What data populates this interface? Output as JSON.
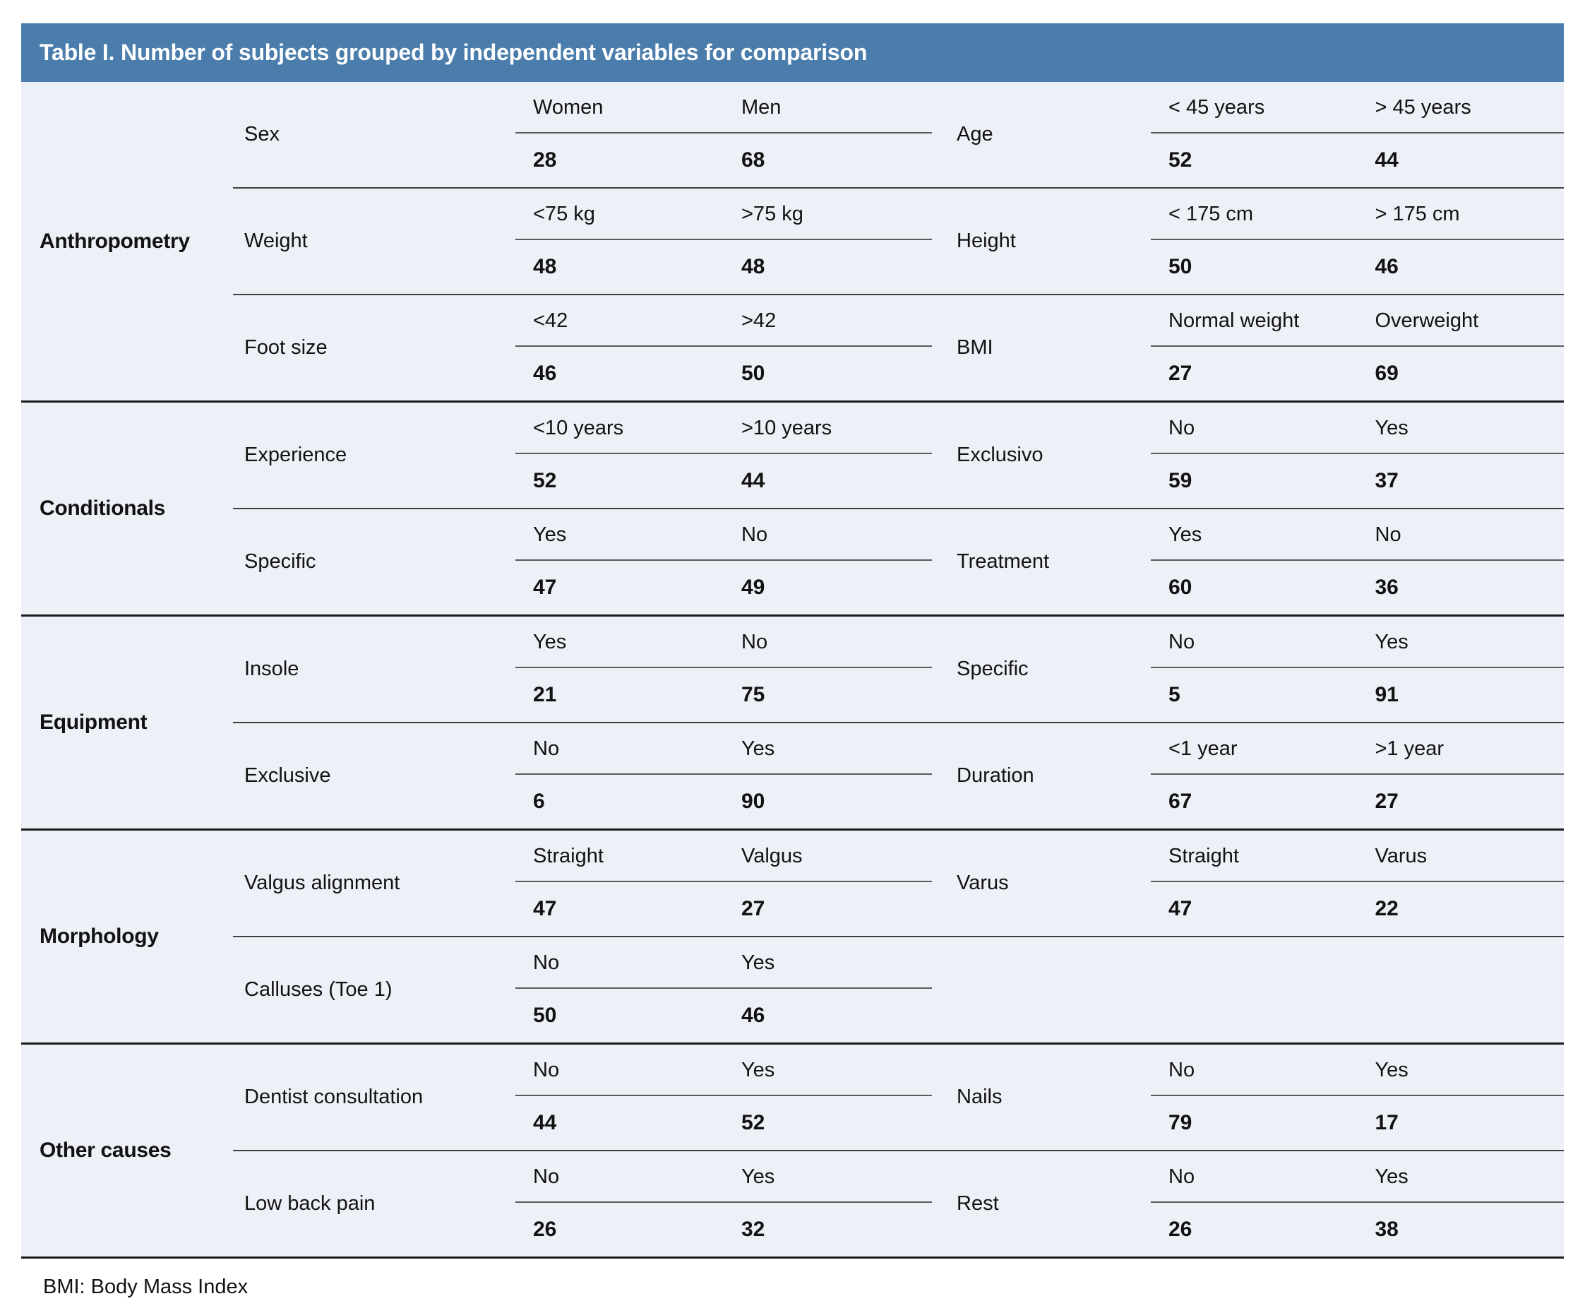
{
  "title": "Table I. Number of subjects grouped by independent variables for comparison",
  "footnote": "BMI: Body Mass Index",
  "colors": {
    "header_bg": "#4a7dab",
    "body_bg": "#edf0f7",
    "group_divider": "#1a1a1a",
    "row_divider": "#3e3e3e",
    "cell_divider": "#5a5a5a"
  },
  "groups": [
    {
      "category": "Anthropometry",
      "rows": [
        {
          "left": {
            "var": "Sex",
            "v1": {
              "label": "Women",
              "count": "28"
            },
            "v2": {
              "label": "Men",
              "count": "68"
            }
          },
          "right": {
            "var": "Age",
            "v1": {
              "label": "< 45 years",
              "count": "52"
            },
            "v2": {
              "label": "> 45 years",
              "count": "44"
            }
          }
        },
        {
          "left": {
            "var": "Weight",
            "v1": {
              "label": "<75 kg",
              "count": "48"
            },
            "v2": {
              "label": ">75 kg",
              "count": "48"
            }
          },
          "right": {
            "var": "Height",
            "v1": {
              "label": "< 175 cm",
              "count": "50"
            },
            "v2": {
              "label": "> 175 cm",
              "count": "46"
            }
          }
        },
        {
          "left": {
            "var": "Foot size",
            "v1": {
              "label": "<42",
              "count": "46"
            },
            "v2": {
              "label": ">42",
              "count": "50"
            }
          },
          "right": {
            "var": "BMI",
            "v1": {
              "label": "Normal weight",
              "count": "27"
            },
            "v2": {
              "label": "Overweight",
              "count": "69"
            }
          }
        }
      ]
    },
    {
      "category": "Conditionals",
      "rows": [
        {
          "left": {
            "var": "Experience",
            "v1": {
              "label": "<10 years",
              "count": "52"
            },
            "v2": {
              "label": ">10 years",
              "count": "44"
            }
          },
          "right": {
            "var": "Exclusivo",
            "v1": {
              "label": "No",
              "count": "59"
            },
            "v2": {
              "label": "Yes",
              "count": "37"
            }
          }
        },
        {
          "left": {
            "var": "Specific",
            "v1": {
              "label": "Yes",
              "count": "47"
            },
            "v2": {
              "label": "No",
              "count": "49"
            }
          },
          "right": {
            "var": "Treatment",
            "v1": {
              "label": "Yes",
              "count": "60"
            },
            "v2": {
              "label": "No",
              "count": "36"
            }
          }
        }
      ]
    },
    {
      "category": "Equipment",
      "rows": [
        {
          "left": {
            "var": "Insole",
            "v1": {
              "label": "Yes",
              "count": "21"
            },
            "v2": {
              "label": "No",
              "count": "75"
            }
          },
          "right": {
            "var": "Specific",
            "v1": {
              "label": "No",
              "count": "5"
            },
            "v2": {
              "label": "Yes",
              "count": "91"
            }
          }
        },
        {
          "left": {
            "var": "Exclusive",
            "v1": {
              "label": "No",
              "count": "6"
            },
            "v2": {
              "label": "Yes",
              "count": "90"
            }
          },
          "right": {
            "var": "Duration",
            "v1": {
              "label": "<1 year",
              "count": "67"
            },
            "v2": {
              "label": ">1 year",
              "count": "27"
            }
          }
        }
      ]
    },
    {
      "category": "Morphology",
      "rows": [
        {
          "left": {
            "var": "Valgus alignment",
            "v1": {
              "label": "Straight",
              "count": "47"
            },
            "v2": {
              "label": "Valgus",
              "count": "27"
            }
          },
          "right": {
            "var": "Varus",
            "v1": {
              "label": "Straight",
              "count": "47"
            },
            "v2": {
              "label": "Varus",
              "count": "22"
            }
          }
        },
        {
          "left": {
            "var": "Calluses (Toe 1)",
            "v1": {
              "label": "No",
              "count": "50"
            },
            "v2": {
              "label": "Yes",
              "count": "46"
            }
          },
          "right": {
            "var": "",
            "v1": {
              "label": "",
              "count": ""
            },
            "v2": {
              "label": "",
              "count": ""
            }
          }
        }
      ]
    },
    {
      "category": "Other causes",
      "rows": [
        {
          "left": {
            "var": "Dentist consultation",
            "v1": {
              "label": "No",
              "count": "44"
            },
            "v2": {
              "label": "Yes",
              "count": "52"
            }
          },
          "right": {
            "var": "Nails",
            "v1": {
              "label": "No",
              "count": "79"
            },
            "v2": {
              "label": "Yes",
              "count": "17"
            }
          }
        },
        {
          "left": {
            "var": "Low back pain",
            "v1": {
              "label": "No",
              "count": "26"
            },
            "v2": {
              "label": "Yes",
              "count": "32"
            }
          },
          "right": {
            "var": "Rest",
            "v1": {
              "label": "No",
              "count": "26"
            },
            "v2": {
              "label": "Yes",
              "count": "38"
            }
          }
        }
      ]
    }
  ]
}
